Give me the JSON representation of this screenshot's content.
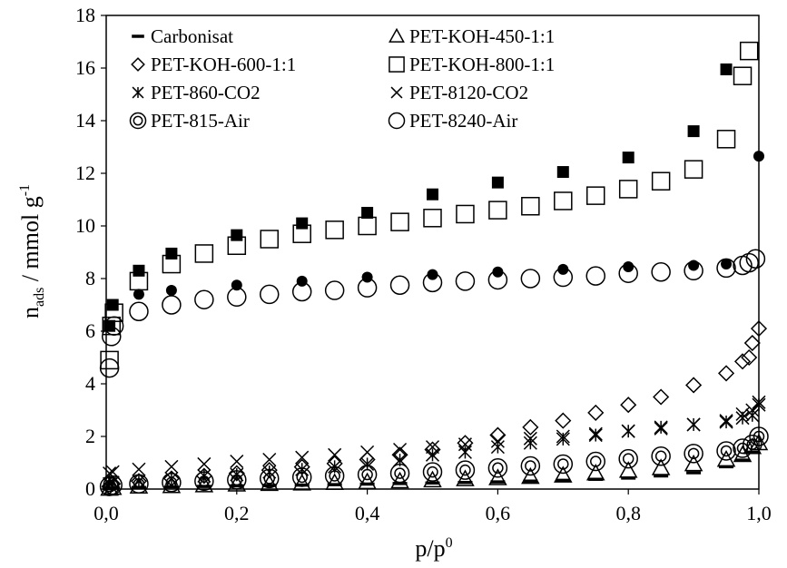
{
  "chart_data": {
    "type": "scatter",
    "title": "",
    "xlabel": "p/p",
    "xlabel_sup": "0",
    "ylabel_main": "n",
    "ylabel_sub": "ads",
    "ylabel_rest": " / mmol  g",
    "ylabel_sup": "-1",
    "xlim": [
      0.0,
      1.0
    ],
    "ylim": [
      0,
      18
    ],
    "xticks": [
      "0,0",
      "0,2",
      "0,4",
      "0,6",
      "0,8",
      "1,0"
    ],
    "yticks": [
      "0",
      "2",
      "4",
      "6",
      "8",
      "10",
      "12",
      "14",
      "16",
      "18"
    ],
    "grid": false,
    "legend_placement": "top",
    "series": [
      {
        "name": "Carbonisat",
        "marker": "dash",
        "points": [
          [
            0.005,
            0.02
          ],
          [
            0.01,
            0.04
          ],
          [
            0.05,
            0.06
          ],
          [
            0.1,
            0.08
          ],
          [
            0.15,
            0.1
          ],
          [
            0.2,
            0.12
          ],
          [
            0.25,
            0.14
          ],
          [
            0.3,
            0.15
          ],
          [
            0.35,
            0.17
          ],
          [
            0.4,
            0.19
          ],
          [
            0.45,
            0.21
          ],
          [
            0.5,
            0.23
          ],
          [
            0.55,
            0.25
          ],
          [
            0.6,
            0.27
          ],
          [
            0.65,
            0.3
          ],
          [
            0.7,
            0.33
          ],
          [
            0.75,
            0.37
          ],
          [
            0.8,
            0.42
          ],
          [
            0.85,
            0.5
          ],
          [
            0.9,
            0.62
          ],
          [
            0.95,
            0.85
          ],
          [
            0.975,
            1.1
          ],
          [
            0.99,
            1.4
          ]
        ]
      },
      {
        "name": "PET-KOH-450-1:1",
        "marker": "triangle",
        "points": [
          [
            0.005,
            0.02
          ],
          [
            0.01,
            0.05
          ],
          [
            0.05,
            0.1
          ],
          [
            0.1,
            0.12
          ],
          [
            0.15,
            0.15
          ],
          [
            0.2,
            0.18
          ],
          [
            0.25,
            0.2
          ],
          [
            0.3,
            0.22
          ],
          [
            0.35,
            0.24
          ],
          [
            0.4,
            0.27
          ],
          [
            0.45,
            0.3
          ],
          [
            0.5,
            0.34
          ],
          [
            0.55,
            0.38
          ],
          [
            0.6,
            0.42
          ],
          [
            0.65,
            0.47
          ],
          [
            0.7,
            0.52
          ],
          [
            0.75,
            0.6
          ],
          [
            0.8,
            0.7
          ],
          [
            0.85,
            0.8
          ],
          [
            0.9,
            0.95
          ],
          [
            0.95,
            1.12
          ],
          [
            0.975,
            1.3
          ],
          [
            0.99,
            1.6
          ],
          [
            1.0,
            1.75
          ]
        ]
      },
      {
        "name": "PET-KOH-600-1:1",
        "marker": "diamond",
        "points": [
          [
            0.005,
            0.1
          ],
          [
            0.01,
            0.2
          ],
          [
            0.05,
            0.3
          ],
          [
            0.1,
            0.4
          ],
          [
            0.15,
            0.5
          ],
          [
            0.2,
            0.6
          ],
          [
            0.25,
            0.72
          ],
          [
            0.3,
            0.84
          ],
          [
            0.35,
            0.97
          ],
          [
            0.4,
            1.12
          ],
          [
            0.45,
            1.3
          ],
          [
            0.5,
            1.5
          ],
          [
            0.55,
            1.75
          ],
          [
            0.6,
            2.05
          ],
          [
            0.65,
            2.35
          ],
          [
            0.7,
            2.6
          ],
          [
            0.75,
            2.9
          ],
          [
            0.8,
            3.2
          ],
          [
            0.85,
            3.5
          ],
          [
            0.9,
            3.95
          ],
          [
            0.95,
            4.4
          ],
          [
            0.975,
            4.85
          ],
          [
            0.985,
            5.0
          ],
          [
            0.99,
            5.55
          ],
          [
            1.0,
            6.1
          ]
        ]
      },
      {
        "name": "PET-KOH-800-1:1",
        "marker": "square",
        "points": [
          [
            0.005,
            4.9
          ],
          [
            0.008,
            6.2
          ],
          [
            0.012,
            6.7
          ],
          [
            0.05,
            7.9
          ],
          [
            0.1,
            8.55
          ],
          [
            0.15,
            8.95
          ],
          [
            0.2,
            9.25
          ],
          [
            0.25,
            9.5
          ],
          [
            0.3,
            9.7
          ],
          [
            0.35,
            9.85
          ],
          [
            0.4,
            10.0
          ],
          [
            0.45,
            10.15
          ],
          [
            0.5,
            10.3
          ],
          [
            0.55,
            10.45
          ],
          [
            0.6,
            10.6
          ],
          [
            0.65,
            10.75
          ],
          [
            0.7,
            10.95
          ],
          [
            0.75,
            11.15
          ],
          [
            0.8,
            11.4
          ],
          [
            0.85,
            11.7
          ],
          [
            0.9,
            12.15
          ],
          [
            0.95,
            13.3
          ],
          [
            0.975,
            15.7
          ],
          [
            0.985,
            16.65
          ]
        ]
      },
      {
        "name": "PET-860-CO2",
        "marker": "asterisk",
        "points": [
          [
            0.005,
            0.2
          ],
          [
            0.01,
            0.25
          ],
          [
            0.05,
            0.3
          ],
          [
            0.1,
            0.4
          ],
          [
            0.15,
            0.5
          ],
          [
            0.2,
            0.55
          ],
          [
            0.25,
            0.65
          ],
          [
            0.3,
            0.75
          ],
          [
            0.35,
            0.85
          ],
          [
            0.4,
            0.95
          ],
          [
            0.45,
            1.1
          ],
          [
            0.5,
            1.3
          ],
          [
            0.55,
            1.4
          ],
          [
            0.6,
            1.6
          ],
          [
            0.65,
            1.75
          ],
          [
            0.7,
            1.9
          ],
          [
            0.75,
            2.05
          ],
          [
            0.8,
            2.2
          ],
          [
            0.85,
            2.35
          ],
          [
            0.9,
            2.45
          ],
          [
            0.95,
            2.55
          ],
          [
            0.975,
            2.7
          ],
          [
            0.99,
            2.8
          ],
          [
            1.0,
            3.2
          ]
        ]
      },
      {
        "name": "PET-8120-CO2",
        "marker": "x",
        "points": [
          [
            0.005,
            0.6
          ],
          [
            0.01,
            0.65
          ],
          [
            0.05,
            0.75
          ],
          [
            0.1,
            0.85
          ],
          [
            0.15,
            0.95
          ],
          [
            0.2,
            1.05
          ],
          [
            0.25,
            1.12
          ],
          [
            0.3,
            1.2
          ],
          [
            0.35,
            1.3
          ],
          [
            0.4,
            1.4
          ],
          [
            0.45,
            1.5
          ],
          [
            0.5,
            1.6
          ],
          [
            0.55,
            1.7
          ],
          [
            0.6,
            1.82
          ],
          [
            0.65,
            1.92
          ],
          [
            0.7,
            2.0
          ],
          [
            0.75,
            2.1
          ],
          [
            0.8,
            2.2
          ],
          [
            0.85,
            2.3
          ],
          [
            0.9,
            2.45
          ],
          [
            0.95,
            2.6
          ],
          [
            0.975,
            2.85
          ],
          [
            0.99,
            3.0
          ],
          [
            1.0,
            3.3
          ]
        ]
      },
      {
        "name": "PET-815-Air",
        "marker": "circle-dot",
        "points": [
          [
            0.005,
            0.1
          ],
          [
            0.01,
            0.15
          ],
          [
            0.05,
            0.2
          ],
          [
            0.1,
            0.25
          ],
          [
            0.15,
            0.3
          ],
          [
            0.2,
            0.35
          ],
          [
            0.25,
            0.4
          ],
          [
            0.3,
            0.45
          ],
          [
            0.35,
            0.5
          ],
          [
            0.4,
            0.55
          ],
          [
            0.45,
            0.6
          ],
          [
            0.5,
            0.65
          ],
          [
            0.55,
            0.72
          ],
          [
            0.6,
            0.8
          ],
          [
            0.65,
            0.88
          ],
          [
            0.7,
            0.95
          ],
          [
            0.75,
            1.05
          ],
          [
            0.8,
            1.15
          ],
          [
            0.85,
            1.25
          ],
          [
            0.9,
            1.35
          ],
          [
            0.95,
            1.45
          ],
          [
            0.975,
            1.55
          ],
          [
            0.99,
            1.7
          ],
          [
            1.0,
            2.0
          ]
        ]
      },
      {
        "name": "PET-8240-Air",
        "marker": "circle",
        "points": [
          [
            0.005,
            4.6
          ],
          [
            0.008,
            5.8
          ],
          [
            0.012,
            6.2
          ],
          [
            0.05,
            6.75
          ],
          [
            0.1,
            7.0
          ],
          [
            0.15,
            7.2
          ],
          [
            0.2,
            7.3
          ],
          [
            0.25,
            7.4
          ],
          [
            0.3,
            7.5
          ],
          [
            0.35,
            7.55
          ],
          [
            0.4,
            7.65
          ],
          [
            0.45,
            7.75
          ],
          [
            0.5,
            7.85
          ],
          [
            0.55,
            7.9
          ],
          [
            0.6,
            7.95
          ],
          [
            0.65,
            8.0
          ],
          [
            0.7,
            8.05
          ],
          [
            0.75,
            8.1
          ],
          [
            0.8,
            8.2
          ],
          [
            0.85,
            8.25
          ],
          [
            0.9,
            8.3
          ],
          [
            0.95,
            8.4
          ],
          [
            0.975,
            8.5
          ],
          [
            0.985,
            8.6
          ],
          [
            0.995,
            8.75
          ]
        ]
      },
      {
        "name": "",
        "marker": "filled-square",
        "points": [
          [
            0.005,
            6.2
          ],
          [
            0.01,
            7.0
          ],
          [
            0.05,
            8.3
          ],
          [
            0.1,
            8.95
          ],
          [
            0.2,
            9.65
          ],
          [
            0.3,
            10.1
          ],
          [
            0.4,
            10.5
          ],
          [
            0.5,
            11.2
          ],
          [
            0.6,
            11.65
          ],
          [
            0.7,
            12.05
          ],
          [
            0.8,
            12.6
          ],
          [
            0.9,
            13.6
          ],
          [
            0.95,
            15.95
          ]
        ]
      },
      {
        "name": "",
        "marker": "filled-circle",
        "points": [
          [
            0.05,
            7.4
          ],
          [
            0.1,
            7.55
          ],
          [
            0.2,
            7.75
          ],
          [
            0.3,
            7.9
          ],
          [
            0.4,
            8.05
          ],
          [
            0.5,
            8.15
          ],
          [
            0.6,
            8.25
          ],
          [
            0.7,
            8.35
          ],
          [
            0.8,
            8.45
          ],
          [
            0.9,
            8.5
          ],
          [
            0.95,
            8.55
          ],
          [
            1.0,
            12.65
          ]
        ]
      }
    ]
  }
}
